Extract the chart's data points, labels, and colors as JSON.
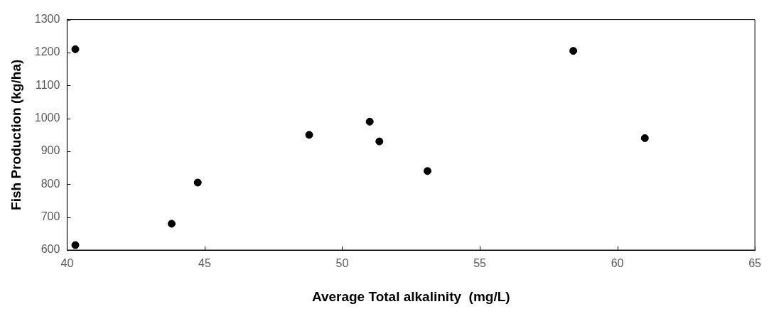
{
  "chart_data": {
    "type": "scatter",
    "xlabel": "Average Total alkalinity  (mg/L)",
    "ylabel": "Fish Production (kg/ha)",
    "series": [
      {
        "color": "#000000",
        "x": [
          40.3,
          40.3,
          43.8,
          44.75,
          48.8,
          51.0,
          51.35,
          53.1,
          58.4,
          61.0
        ],
        "values": [
          1210,
          615,
          680,
          805,
          950,
          990,
          930,
          840,
          1205,
          940
        ]
      }
    ],
    "xlim": [
      40,
      65
    ],
    "xticks": [
      40,
      45,
      50,
      55,
      60,
      65
    ],
    "ylim": [
      600,
      1300
    ],
    "yticks": [
      600,
      700,
      800,
      900,
      1000,
      1100,
      1200,
      1300
    ],
    "grid": false,
    "legend": false,
    "marker": "circle"
  }
}
